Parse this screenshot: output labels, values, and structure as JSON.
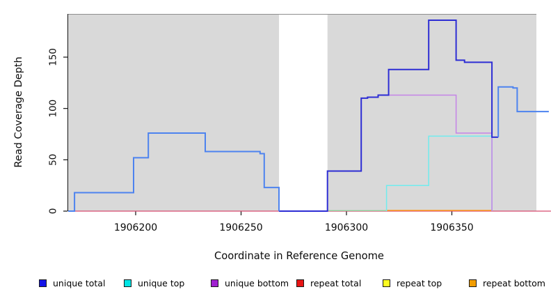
{
  "chart_data": {
    "type": "line",
    "subtype": "step-after-coverage-plot",
    "title": "",
    "xlabel": "Coordinate in Reference Genome",
    "ylabel": "Read Coverage Depth",
    "xlim": [
      1906168,
      1906397
    ],
    "ylim": [
      0,
      192
    ],
    "x_ticks": [
      1906200,
      1906250,
      1906300,
      1906350
    ],
    "y_ticks": [
      0,
      50,
      100,
      150
    ],
    "grid": false,
    "plot_background": "#d9d9d9",
    "plot_border_top": "#8e8e8e",
    "gap_region": {
      "x_start": 1906268,
      "x_end": 1906291,
      "color": "#ffffff"
    },
    "series": [
      {
        "name": "repeat-total-baseline",
        "color": "#d64a6e",
        "width": 1.3,
        "points": [
          [
            1906168,
            0
          ]
        ],
        "x_end": 1906397
      },
      {
        "name": "baseline-green-segment",
        "color": "#8fce9b",
        "width": 1.3,
        "points": [
          [
            1906291,
            0.5
          ]
        ],
        "x_end": 1906319
      },
      {
        "name": "repeat-bottom",
        "color": "#ff9d1e",
        "width": 1.6,
        "points": [
          [
            1906319,
            0.7
          ]
        ],
        "x_end": 1906369
      },
      {
        "name": "unique-top",
        "color": "#70ecee",
        "width": 1.5,
        "points": [
          [
            1906319,
            0
          ],
          [
            1906319,
            25
          ],
          [
            1906339,
            73
          ],
          [
            1906369,
            0
          ]
        ],
        "x_end": 1906369
      },
      {
        "name": "unique-bottom",
        "color": "#c583e8",
        "width": 1.5,
        "points": [
          [
            1906320,
            113
          ],
          [
            1906352,
            76
          ],
          [
            1906369,
            0
          ]
        ],
        "x_end": 1906369
      },
      {
        "name": "unique-total-right",
        "color": "#2d2dd4",
        "width": 2,
        "points": [
          [
            1906268,
            0
          ],
          [
            1906291,
            39
          ],
          [
            1906307,
            110
          ],
          [
            1906310,
            111
          ],
          [
            1906315,
            113
          ],
          [
            1906320,
            138
          ],
          [
            1906339,
            186
          ],
          [
            1906352,
            147
          ],
          [
            1906356,
            145
          ],
          [
            1906369,
            72
          ]
        ],
        "x_end": 1906372
      },
      {
        "name": "unique-total-left",
        "color": "#4d83ef",
        "width": 2,
        "points": [
          [
            1906168,
            0
          ],
          [
            1906171,
            18
          ],
          [
            1906199,
            52
          ],
          [
            1906206,
            76
          ],
          [
            1906233,
            58
          ],
          [
            1906259,
            56
          ],
          [
            1906261,
            23
          ],
          [
            1906268,
            0
          ]
        ],
        "x_end": 1906268
      },
      {
        "name": "unique-total-far-right",
        "color": "#4d83ef",
        "width": 2,
        "points": [
          [
            1906372,
            72
          ],
          [
            1906372,
            121
          ],
          [
            1906379,
            120
          ],
          [
            1906381,
            97
          ]
        ],
        "x_end": 1906396
      }
    ],
    "legend": [
      {
        "label": "unique total",
        "color": "#1414e8"
      },
      {
        "label": "unique top",
        "color": "#00e5e5"
      },
      {
        "label": "unique bottom",
        "color": "#a020d0"
      },
      {
        "label": "repeat total",
        "color": "#e81414"
      },
      {
        "label": "repeat top",
        "color": "#fdfd22"
      },
      {
        "label": "repeat bottom",
        "color": "#f29d00"
      }
    ],
    "legend_position": "bottom"
  }
}
